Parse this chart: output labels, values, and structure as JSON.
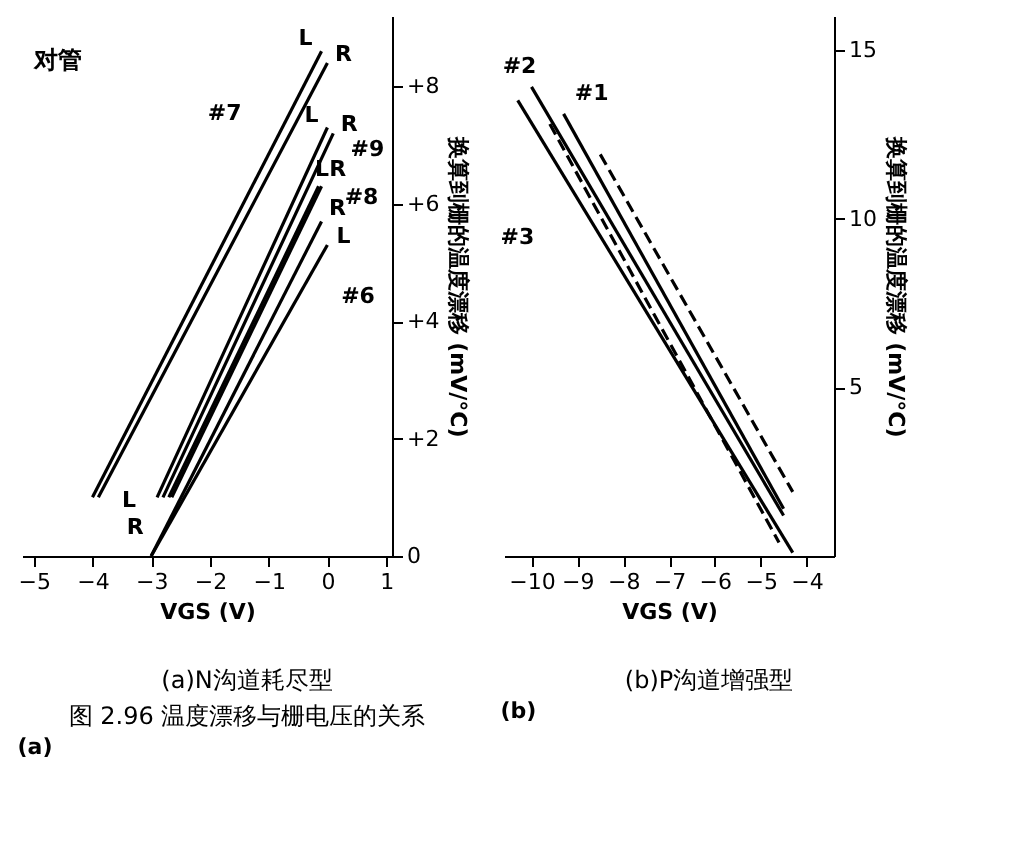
{
  "chart_data": [
    {
      "type": "line",
      "title": "(a)",
      "subtitle": "对管",
      "xlabel": "VGS (V)",
      "ylabel": "换算到栅的温度漂移 (mV/°C)",
      "xlim": [
        -5.2,
        1.1
      ],
      "xticks": [
        -5,
        -4,
        -3,
        -2,
        -1,
        0,
        1
      ],
      "ylim": [
        0,
        9.2
      ],
      "yticks": [
        0,
        {
          "value": 2,
          "label": "+2"
        },
        {
          "value": 4,
          "label": "+4"
        },
        {
          "value": 6,
          "label": "+6"
        },
        {
          "value": 8,
          "label": "+8"
        }
      ],
      "series": [
        {
          "color": "#000000",
          "x": [
            -4.0,
            -0.1
          ],
          "values": [
            1.0,
            8.6
          ]
        },
        {
          "color": "#000000",
          "x": [
            -3.9,
            0.0
          ],
          "values": [
            1.0,
            8.4
          ]
        },
        {
          "color": "#000000",
          "x": [
            -2.9,
            0.0
          ],
          "values": [
            1.0,
            7.3
          ]
        },
        {
          "color": "#000000",
          "x": [
            -2.8,
            0.1
          ],
          "values": [
            1.0,
            7.2
          ]
        },
        {
          "color": "#000000",
          "x": [
            -2.7,
            -0.15
          ],
          "values": [
            1.0,
            6.3
          ]
        },
        {
          "color": "#000000",
          "x": [
            -2.65,
            -0.1
          ],
          "values": [
            1.0,
            6.3
          ]
        },
        {
          "color": "#000000",
          "x": [
            -3.0,
            -0.1
          ],
          "values": [
            0.0,
            5.7
          ]
        },
        {
          "color": "#000000",
          "x": [
            -3.0,
            0.0
          ],
          "values": [
            0.0,
            5.3
          ]
        }
      ],
      "annotations": [
        {
          "text": "L",
          "x": -0.1,
          "y": 8.6
        },
        {
          "text": "R",
          "x": 0.0,
          "y": 8.4
        },
        {
          "text": "#7",
          "x": -1.0,
          "y": 6.85
        },
        {
          "text": "L",
          "x": 0.0,
          "y": 7.3
        },
        {
          "text": "R",
          "x": 0.1,
          "y": 7.2
        },
        {
          "text": "#9",
          "x": 0.0,
          "y": 6.99
        },
        {
          "text": "LR",
          "x": -0.15,
          "y": 6.3
        },
        {
          "text": "#8",
          "x": -0.1,
          "y": 6.3
        },
        {
          "text": "R",
          "x": -0.1,
          "y": 5.7
        },
        {
          "text": "L",
          "x": 0.0,
          "y": 5.3
        },
        {
          "text": "#6",
          "x": -0.5,
          "y": 4.42
        },
        {
          "text": "L",
          "x": -2.9,
          "y": 1.0
        },
        {
          "text": "R",
          "x": -3.0,
          "y": 0.0
        },
        "(a)N沟道耗尽型",
        "图 2.96  温度漂移与栅电压的关系"
      ]
    },
    {
      "type": "line",
      "title": "(b)",
      "xlabel": "VGS (V)",
      "ylabel": "换算到栅的温度漂移 (mV/°C)",
      "xlim": [
        -10.6,
        -3.4
      ],
      "xticks": [
        -10,
        -9,
        -8,
        -7,
        -6,
        -5,
        -4
      ],
      "ylim": [
        0,
        16
      ],
      "yticks": [
        5,
        10,
        15
      ],
      "series": [
        {
          "color": "#000000",
          "x": [
            -10.3,
            -4.3
          ],
          "values": [
            13.5,
            0.1
          ]
        },
        {
          "color": "#000000",
          "x": [
            -9.6,
            -4.6
          ],
          "values": [
            12.8,
            0.4
          ],
          "line_style": "dashed"
        },
        {
          "color": "#000000",
          "x": [
            -10.0,
            -4.5
          ],
          "values": [
            13.9,
            1.2
          ]
        },
        {
          "color": "#000000",
          "x": [
            -9.3,
            -4.5
          ],
          "values": [
            13.1,
            1.4
          ]
        },
        {
          "color": "#000000",
          "x": [
            -8.5,
            -4.3
          ],
          "values": [
            11.9,
            1.9
          ],
          "line_style": "dashed"
        }
      ],
      "annotations": [
        {
          "text": "#2",
          "x": -10.0,
          "y": 13.9
        },
        {
          "text": "#1",
          "x": -9.3,
          "y": 13.1
        },
        {
          "text": "#3",
          "x": -9.0,
          "y": 10.6
        },
        "(b)P沟道增强型"
      ]
    }
  ]
}
